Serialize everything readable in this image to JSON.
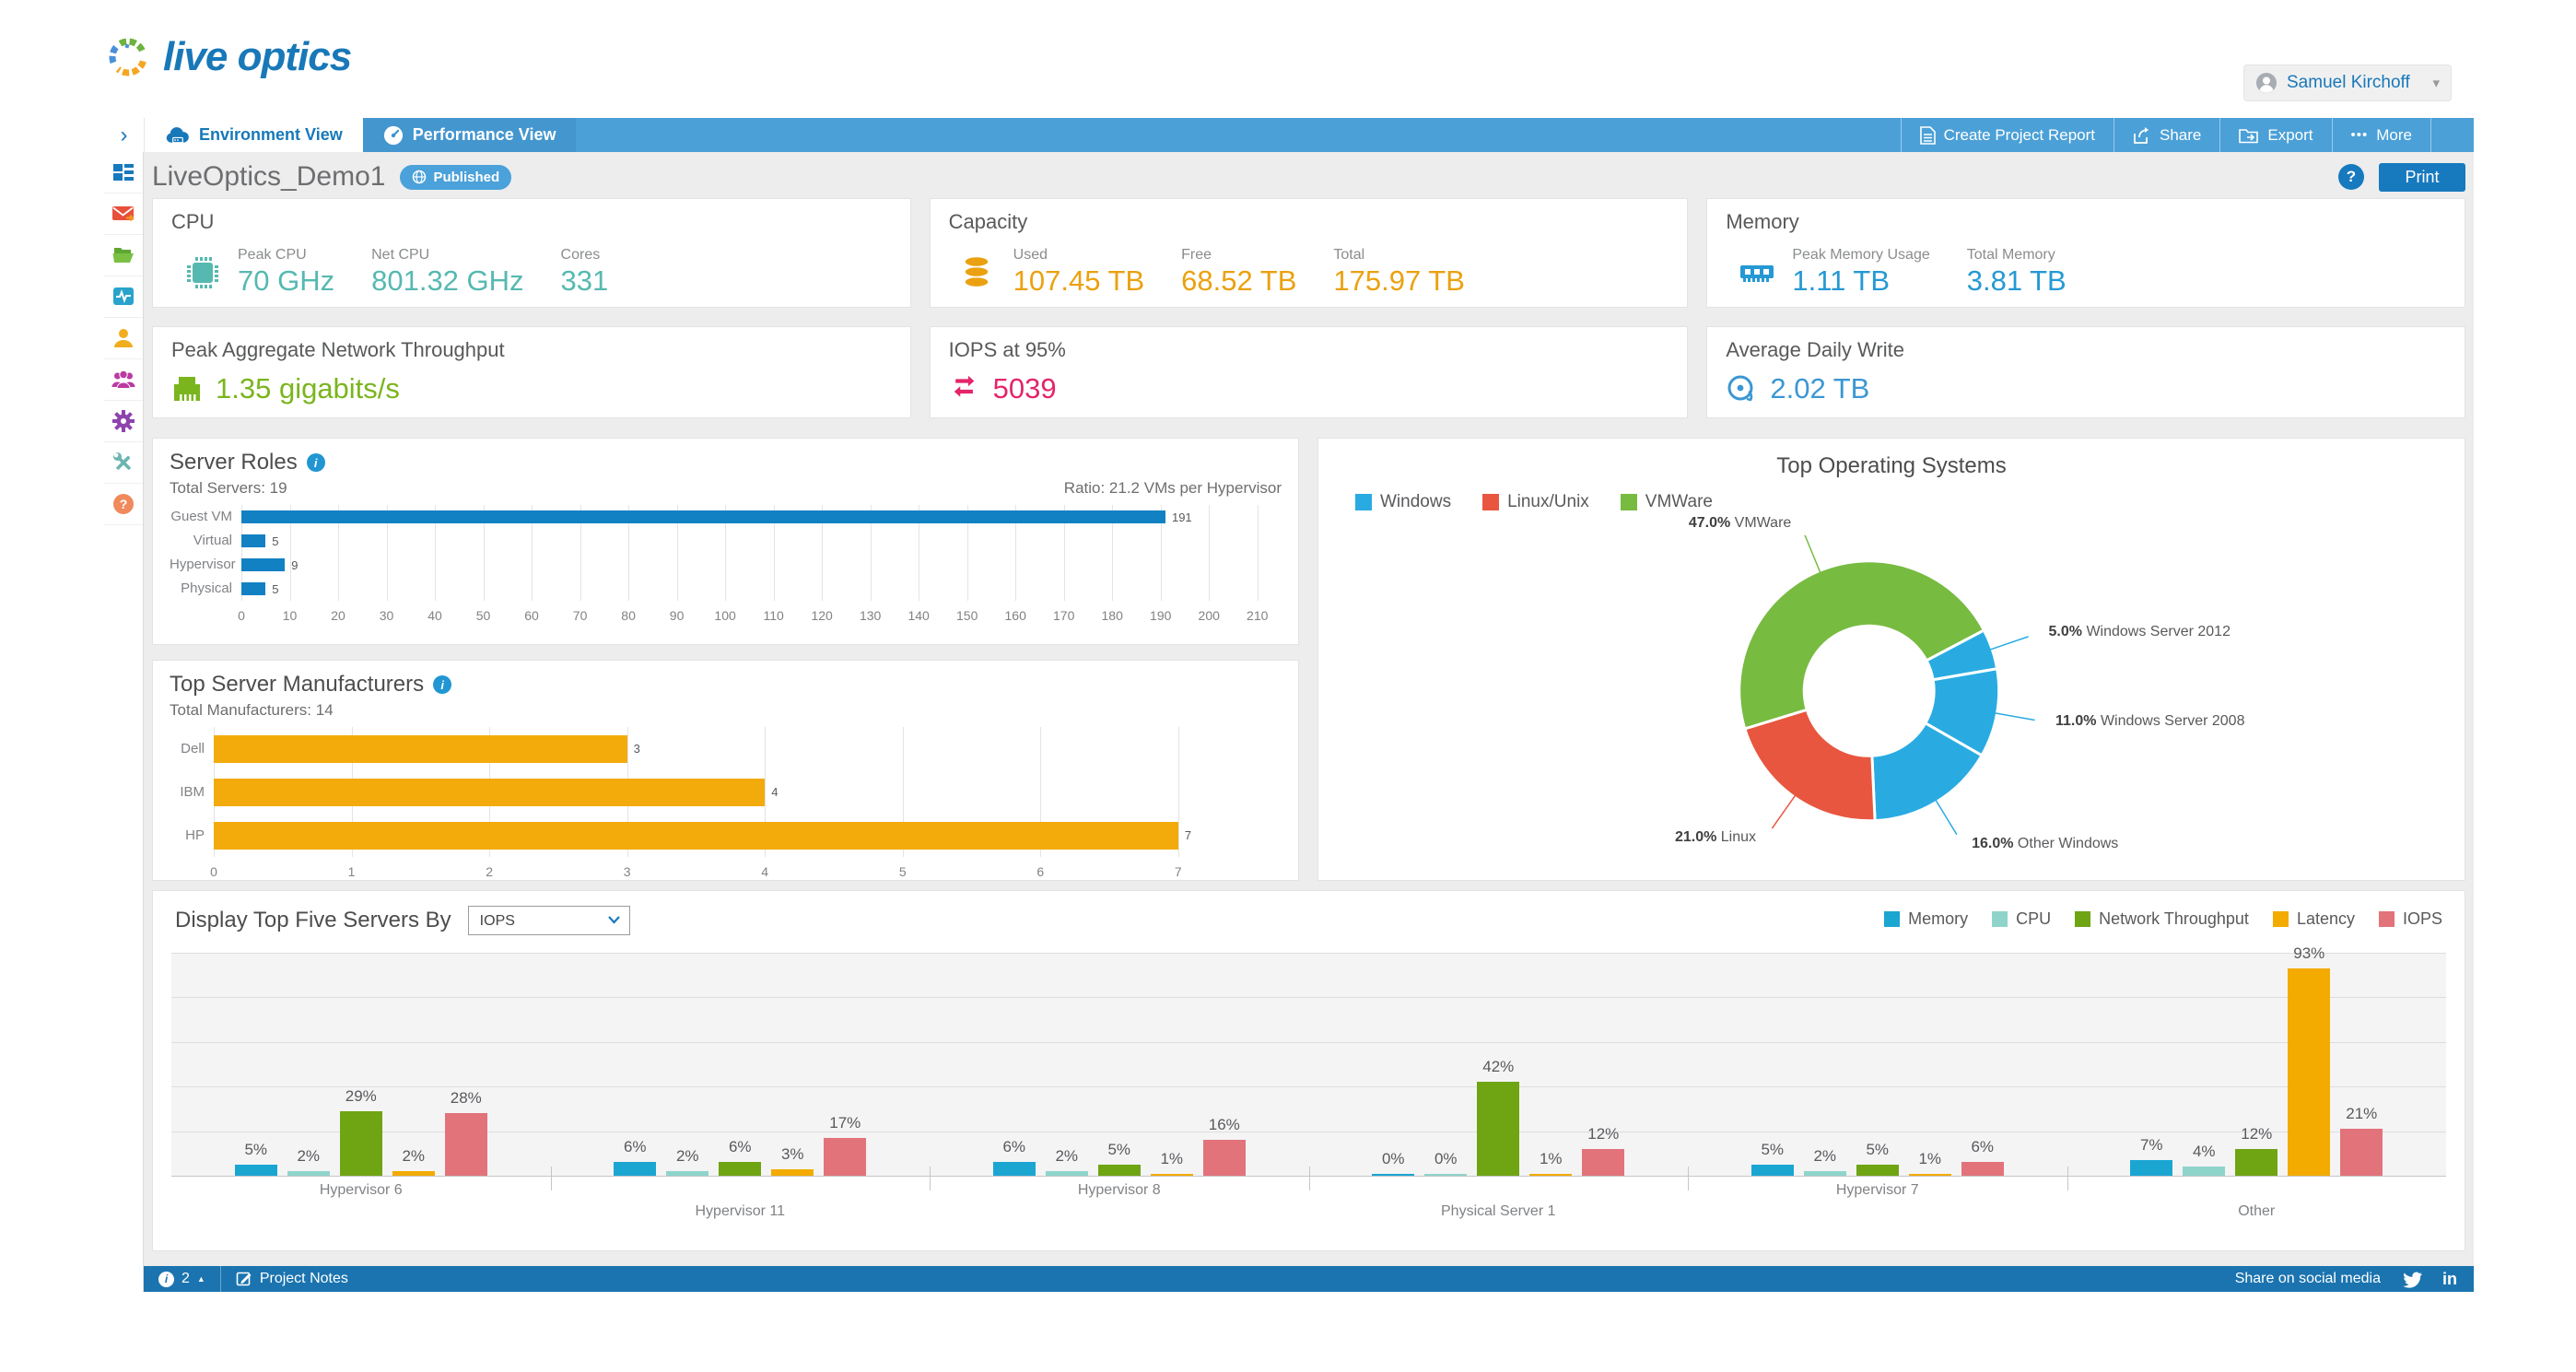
{
  "icons": {
    "chevron_right": "›",
    "caret_down": "▾",
    "caret_up": "▲",
    "more_dots": "•••",
    "info_i": "i",
    "help_q": "?",
    "linkedin_in": "in"
  },
  "header": {
    "logo_text": "live optics",
    "user_name": "Samuel Kirchoff"
  },
  "nav": {
    "tabs": [
      {
        "label": "Environment View"
      },
      {
        "label": "Performance View"
      }
    ],
    "actions": [
      {
        "label": "Create Project Report"
      },
      {
        "label": "Share"
      },
      {
        "label": "Export"
      },
      {
        "label": "More"
      }
    ]
  },
  "sidebar": {
    "items": [
      "dashboard",
      "mail",
      "projects",
      "activity",
      "user",
      "team",
      "settings",
      "tools",
      "help"
    ]
  },
  "page": {
    "title": "LiveOptics_Demo1",
    "badge": "Published",
    "print_label": "Print"
  },
  "stats": {
    "cpu": {
      "title": "CPU",
      "color": "#56b9b1",
      "metrics": [
        {
          "label": "Peak CPU",
          "value": "70 GHz"
        },
        {
          "label": "Net CPU",
          "value": "801.32 GHz"
        },
        {
          "label": "Cores",
          "value": "331"
        }
      ]
    },
    "capacity": {
      "title": "Capacity",
      "color": "#eba10f",
      "metrics": [
        {
          "label": "Used",
          "value": "107.45 TB"
        },
        {
          "label": "Free",
          "value": "68.52 TB"
        },
        {
          "label": "Total",
          "value": "175.97 TB"
        }
      ]
    },
    "memory": {
      "title": "Memory",
      "color": "#2599d4",
      "metrics": [
        {
          "label": "Peak Memory Usage",
          "value": "1.11 TB"
        },
        {
          "label": "Total Memory",
          "value": "3.81 TB"
        }
      ]
    },
    "network": {
      "title": "Peak Aggregate Network Throughput",
      "value": "1.35 gigabits/s",
      "color": "#7ab51d"
    },
    "iops": {
      "title": "IOPS at 95%",
      "value": "5039",
      "color": "#e3256b"
    },
    "daily_write": {
      "title": "Average Daily Write",
      "value": "2.02 TB",
      "color": "#3b97d3"
    }
  },
  "chart_data": [
    {
      "id": "server_roles",
      "type": "bar",
      "orientation": "horizontal",
      "title": "Server Roles",
      "subtitle_left": "Total Servers: 19",
      "subtitle_right": "Ratio: 21.2 VMs per Hypervisor",
      "bar_color": "#1181c3",
      "categories": [
        "Guest VM",
        "Virtual",
        "Hypervisor",
        "Physical"
      ],
      "values": [
        191,
        5,
        9,
        5
      ],
      "xlim": [
        0,
        215
      ],
      "tick_step": 10,
      "tick_last": 210,
      "grid": true
    },
    {
      "id": "manufacturers",
      "type": "bar",
      "orientation": "horizontal",
      "title": "Top Server Manufacturers",
      "subtitle_left": "Total Manufacturers: 14",
      "bar_color": "#f3ab0c",
      "categories": [
        "Dell",
        "IBM",
        "HP"
      ],
      "values": [
        3,
        4,
        7
      ],
      "xlim": [
        0,
        7.75
      ],
      "tick_step": 1,
      "tick_last": 7,
      "grid": true
    },
    {
      "id": "top_os",
      "type": "donut",
      "title": "Top Operating Systems",
      "legend": [
        {
          "name": "Windows",
          "color": "#29abe2"
        },
        {
          "name": "Linux/Unix",
          "color": "#e8563f"
        },
        {
          "name": "VMWare",
          "color": "#77bb41"
        }
      ],
      "start_angle_deg": -107,
      "slices": [
        {
          "name": "VMWare",
          "pct": 47.0,
          "color": "#77bb41"
        },
        {
          "name": "Windows Server 2012",
          "pct": 5.0,
          "color": "#29abe2"
        },
        {
          "name": "Windows Server 2008",
          "pct": 11.0,
          "color": "#29abe2"
        },
        {
          "name": "Other Windows",
          "pct": 16.0,
          "color": "#29abe2"
        },
        {
          "name": "Linux",
          "pct": 21.0,
          "color": "#e8563f"
        }
      ]
    },
    {
      "id": "top_servers",
      "type": "grouped-bar",
      "control_label": "Display Top Five Servers By",
      "dropdown_value": "IOPS",
      "unit": "%",
      "ylim": [
        0,
        100
      ],
      "grid_step": 20,
      "series": [
        {
          "name": "Memory",
          "color": "#1ba6d2"
        },
        {
          "name": "CPU",
          "color": "#8fd4cb"
        },
        {
          "name": "Network Throughput",
          "color": "#6fa413"
        },
        {
          "name": "Latency",
          "color": "#f3ab00"
        },
        {
          "name": "IOPS",
          "color": "#e2737b"
        }
      ],
      "groups": [
        {
          "label": "Hypervisor 6",
          "values": [
            5,
            2,
            29,
            2,
            28
          ]
        },
        {
          "label": "Hypervisor 11",
          "values": [
            6,
            2,
            6,
            3,
            17
          ]
        },
        {
          "label": "Hypervisor 8",
          "values": [
            6,
            2,
            5,
            1,
            16
          ]
        },
        {
          "label": "Physical Server 1",
          "values": [
            0,
            0,
            42,
            1,
            12
          ]
        },
        {
          "label": "Hypervisor 7",
          "values": [
            5,
            2,
            5,
            1,
            6
          ]
        },
        {
          "label": "Other",
          "values": [
            7,
            4,
            12,
            93,
            21
          ]
        }
      ]
    }
  ],
  "footer": {
    "info_count": "2",
    "project_notes_label": "Project Notes",
    "share_label": "Share on social media"
  }
}
